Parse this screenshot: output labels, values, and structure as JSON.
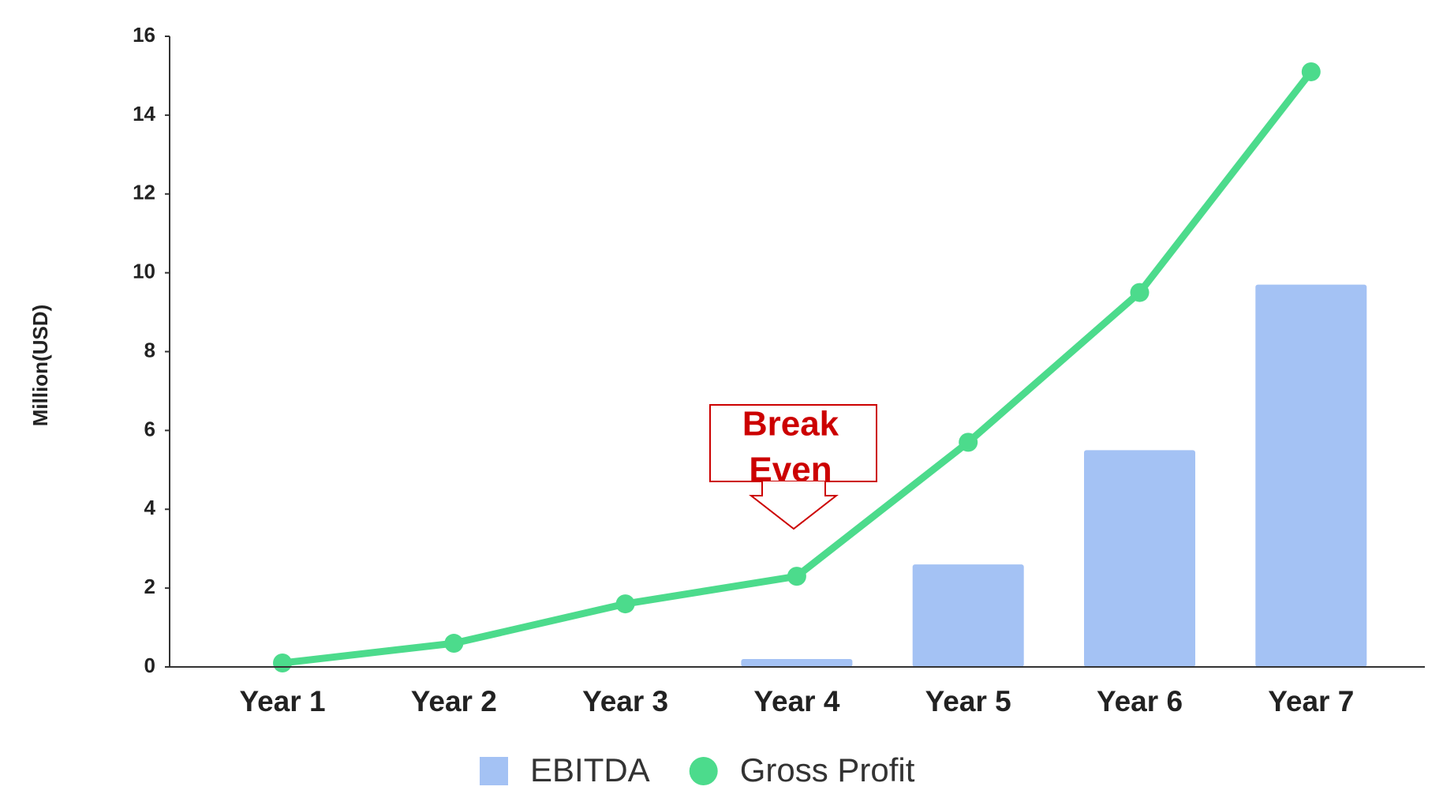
{
  "chart_data": {
    "type": "bar_line",
    "y_label": "Million(USD)",
    "categories": [
      "Year 1",
      "Year 2",
      "Year 3",
      "Year 4",
      "Year 5",
      "Year 6",
      "Year 7"
    ],
    "series": [
      {
        "name": "EBITDA",
        "type": "bar",
        "color": "#a4c2f4",
        "values": [
          null,
          null,
          null,
          0.2,
          2.6,
          5.5,
          9.7
        ]
      },
      {
        "name": "Gross Profit",
        "type": "line",
        "color": "#4cdb8c",
        "values": [
          0.1,
          0.6,
          1.6,
          2.3,
          5.7,
          9.5,
          15.1
        ]
      }
    ],
    "ylim": [
      0,
      16
    ],
    "yticks": [
      0,
      2,
      4,
      6,
      8,
      10,
      12,
      14,
      16
    ],
    "annotation": {
      "lines": [
        "Break",
        "Even"
      ],
      "color": "#cc0000"
    },
    "legend": "bottom"
  }
}
